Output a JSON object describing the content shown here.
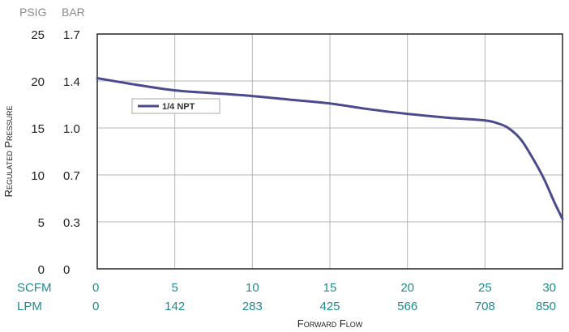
{
  "chart_data": {
    "type": "line",
    "y_unit_headers": [
      "PSIG",
      "BAR"
    ],
    "y_ticks_psig": [
      "25",
      "20",
      "15",
      "10",
      "5",
      "0"
    ],
    "y_ticks_bar": [
      "1.7",
      "1.4",
      "1.0",
      "0.7",
      "0.3",
      "0"
    ],
    "ylabel": "Regulated Pressure",
    "ylim": [
      0,
      25
    ],
    "x_row_labels": [
      "SCFM",
      "LPM"
    ],
    "x_ticks_scfm": [
      "0",
      "5",
      "10",
      "15",
      "20",
      "25",
      "30"
    ],
    "x_ticks_lpm": [
      "0",
      "142",
      "283",
      "425",
      "566",
      "708",
      "850"
    ],
    "xlabel": "Forward Flow",
    "xlim": [
      0,
      30
    ],
    "grid": true,
    "legend_placement": "top-left",
    "series": [
      {
        "name": "1/4 NPT",
        "color": "#4a4a8e",
        "x": [
          0,
          2.5,
          5,
          7.5,
          10,
          12.5,
          15,
          17.5,
          20,
          22.5,
          25,
          25.8,
          26.5,
          27.3,
          28,
          28.8,
          29.5,
          30
        ],
        "y": [
          20.3,
          19.6,
          19.0,
          18.7,
          18.4,
          18.0,
          17.6,
          17.0,
          16.5,
          16.1,
          15.8,
          15.5,
          15.0,
          13.8,
          12.0,
          9.6,
          7.0,
          5.3
        ]
      }
    ]
  }
}
